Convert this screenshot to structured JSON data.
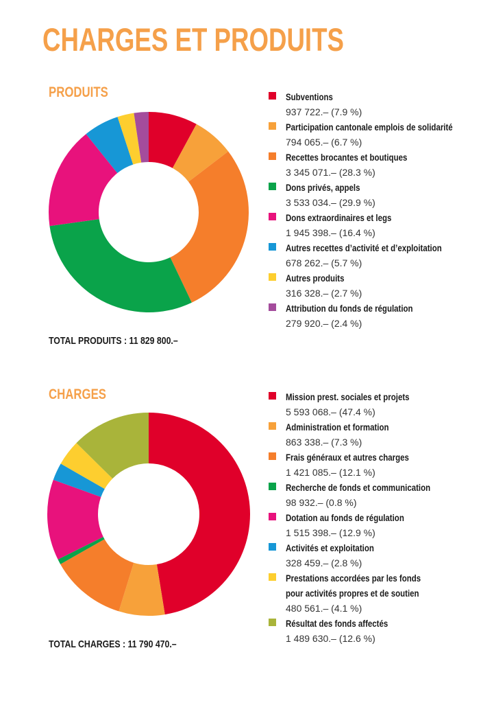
{
  "title": "CHARGES ET PRODUITS",
  "colors": {
    "accent": "#f5a04a"
  },
  "chart_data": [
    {
      "type": "pie",
      "title": "PRODUITS",
      "total_label": "TOTAL PRODUITS : 11 829 800.–",
      "categories": [
        "Subventions",
        "Participation cantonale emplois de solidarité",
        "Recettes brocantes et boutiques",
        "Dons privés, appels",
        "Dons extraordinaires et legs",
        "Autres recettes d’activité et d’exploitation",
        "Autres produits",
        "Attribution du fonds de régulation"
      ],
      "label_lines": [
        [
          "Subventions"
        ],
        [
          "Participation cantonale emplois de solidarité"
        ],
        [
          "Recettes brocantes et boutiques"
        ],
        [
          "Dons privés, appels"
        ],
        [
          "Dons extraordinaires et legs"
        ],
        [
          "Autres recettes d’activité et d’exploitation"
        ],
        [
          "Autres produits"
        ],
        [
          "Attribution du fonds de régulation"
        ]
      ],
      "values": [
        937722,
        794065,
        3345071,
        3533034,
        1945398,
        678262,
        316328,
        279920
      ],
      "value_labels": [
        "937 722.– (7.9 %)",
        "794 065.– (6.7 %)",
        "3 345 071.– (28.3 %)",
        "3 533 034.– (29.9 %)",
        "1 945 398.– (16.4 %)",
        "678 262.– (5.7 %)",
        "316 328.– (2.7 %)",
        "279 920.– (2.4 %)"
      ],
      "colors": [
        "#e0002a",
        "#f7a13a",
        "#f57e2b",
        "#0aa34a",
        "#e8127c",
        "#1797d6",
        "#fdce2f",
        "#a44c9c"
      ]
    },
    {
      "type": "pie",
      "title": "CHARGES",
      "total_label": "TOTAL CHARGES : 11 790 470.–",
      "categories": [
        "Mission prest. sociales et projets",
        "Administration et formation",
        "Frais généraux et autres charges",
        "Recherche de fonds et communication",
        "Dotation au fonds de régulation",
        "Activités et exploitation",
        "Prestations accordées par les fonds pour activités propres et de soutien",
        "Résultat des fonds affectés"
      ],
      "label_lines": [
        [
          "Mission prest. sociales et projets"
        ],
        [
          "Administration et formation"
        ],
        [
          "Frais généraux et autres charges"
        ],
        [
          "Recherche de fonds et communication"
        ],
        [
          "Dotation au fonds de régulation"
        ],
        [
          "Activités et exploitation"
        ],
        [
          "Prestations accordées par les fonds",
          "pour activités propres et de soutien"
        ],
        [
          "Résultat des fonds affectés"
        ]
      ],
      "values": [
        5593068,
        863338,
        1421085,
        98932,
        1515398,
        328459,
        480561,
        1489630
      ],
      "value_labels": [
        "5 593 068.– (47.4 %)",
        "863 338.– (7.3 %)",
        "1 421 085.– (12.1 %)",
        "98 932.– (0.8 %)",
        "1 515 398.– (12.9 %)",
        "328 459.– (2.8 %)",
        "480 561.– (4.1 %)",
        "1 489 630.– (12.6 %)"
      ],
      "colors": [
        "#e0002a",
        "#f7a13a",
        "#f57e2b",
        "#0aa34a",
        "#e8127c",
        "#1797d6",
        "#fdce2f",
        "#a9b43a"
      ]
    }
  ]
}
